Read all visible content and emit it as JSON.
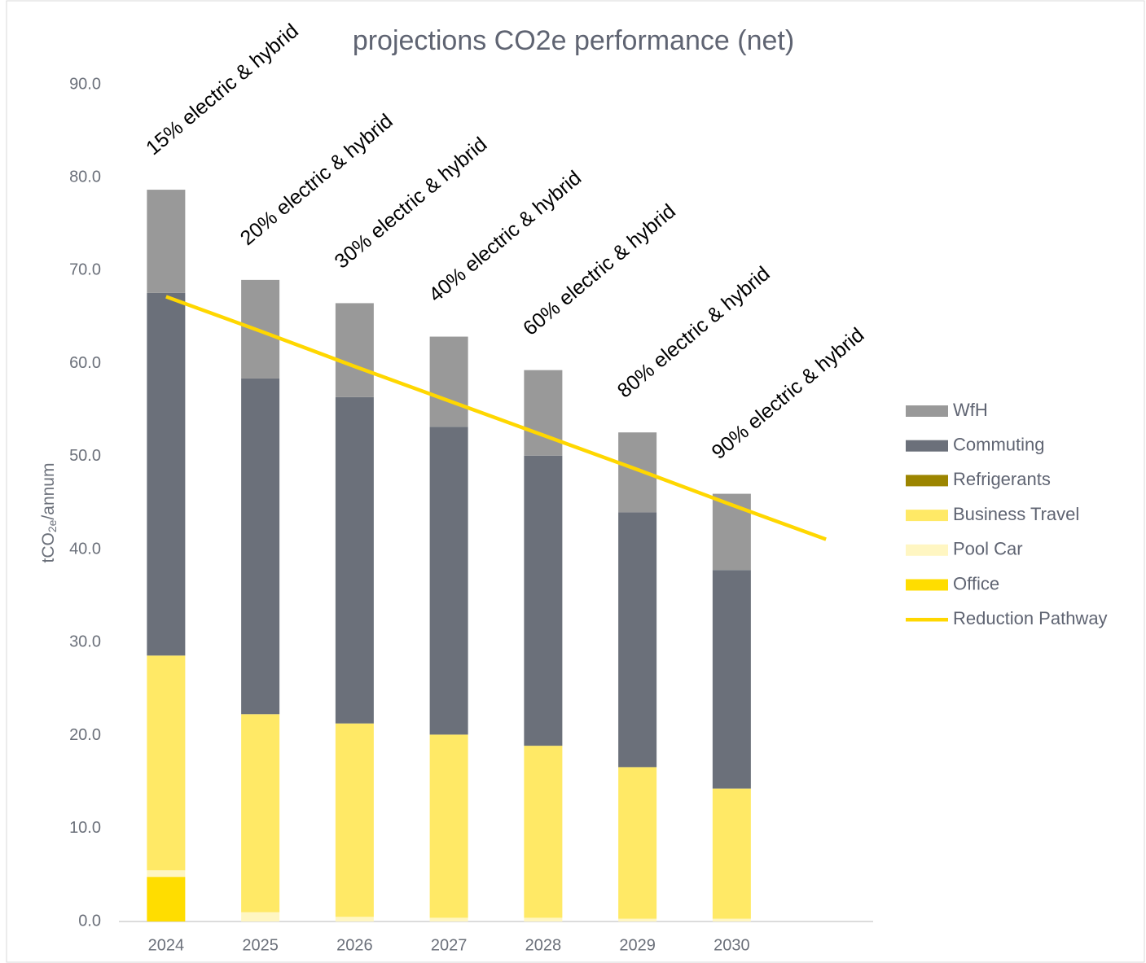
{
  "chart_data": {
    "type": "bar",
    "stacked": true,
    "title": "projections CO2e performance (net)",
    "y_label": [
      "tCO",
      "2e",
      "/annum"
    ],
    "categories": [
      "2024",
      "2025",
      "2026",
      "2027",
      "2028",
      "2029",
      "2030",
      null
    ],
    "ylim": [
      0,
      90
    ],
    "yticks": [
      {
        "value": 0,
        "label": "0.0"
      },
      {
        "value": 10,
        "label": "10.0"
      },
      {
        "value": 20,
        "label": "20.0"
      },
      {
        "value": 30,
        "label": "30.0"
      },
      {
        "value": 40,
        "label": "40.0"
      },
      {
        "value": 50,
        "label": "50.0"
      },
      {
        "value": 60,
        "label": "60.0"
      },
      {
        "value": 70,
        "label": "70.0"
      },
      {
        "value": 80,
        "label": "80.0"
      },
      {
        "value": 90,
        "label": "90.0"
      }
    ],
    "grid": false,
    "legend": "right",
    "series": [
      {
        "name": "Office",
        "color": "#ffdd00",
        "values": [
          4.8,
          0,
          0,
          0,
          0,
          0,
          0,
          null
        ]
      },
      {
        "name": "Pool Car",
        "color": "#fff6c2",
        "values": [
          0.7,
          1.0,
          0.5,
          0.4,
          0.4,
          0.3,
          0.3,
          null
        ]
      },
      {
        "name": "Business Travel",
        "color": "#ffe966",
        "values": [
          23.1,
          21.3,
          20.8,
          19.7,
          18.5,
          16.3,
          14.0,
          null
        ]
      },
      {
        "name": "Refrigerants",
        "color": "#9c8500",
        "values": [
          0,
          0,
          0,
          0,
          0,
          0,
          0,
          null
        ]
      },
      {
        "name": "Commuting",
        "color": "#6b707a",
        "values": [
          39.0,
          36.1,
          35.1,
          33.1,
          31.2,
          27.4,
          23.5,
          null
        ]
      },
      {
        "name": "WfH",
        "color": "#999999",
        "values": [
          11.1,
          10.6,
          10.1,
          9.7,
          9.2,
          8.6,
          8.2,
          null
        ]
      },
      {
        "name": "Reduction Pathway",
        "type": "line",
        "color": "#ffd700",
        "values": [
          67.2,
          63.5,
          59.7,
          56.0,
          52.3,
          48.6,
          44.8,
          41.1
        ]
      }
    ],
    "annotations": [
      "15% electric & hybrid",
      "20% electric & hybrid",
      "30% electric & hybrid",
      "40% electric & hybrid",
      "60% electric & hybrid",
      "80% electric & hybrid",
      "90% electric & hybrid"
    ]
  }
}
